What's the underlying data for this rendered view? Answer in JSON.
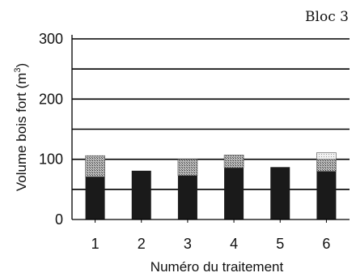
{
  "panel_label": "Bloc 3",
  "chart_data": {
    "type": "bar",
    "stacked": true,
    "title": "",
    "xlabel": "Numéro du traitement",
    "ylabel": "Volume bois fort (m 3 )",
    "ylabel_base": "Volume bois fort (m",
    "ylabel_sup": "3",
    "ylabel_close": ")",
    "ylim": [
      0,
      300
    ],
    "yticks": [
      0,
      100,
      200,
      300
    ],
    "gridlines": [
      50,
      100,
      150,
      200,
      250,
      300
    ],
    "categories": [
      "1",
      "2",
      "3",
      "4",
      "5",
      "6"
    ],
    "series": [
      {
        "values": [
          71,
          81,
          73,
          86,
          87,
          80
        ],
        "color": "#1a1a1a",
        "pattern": "solid"
      },
      {
        "values": [
          35,
          0,
          27,
          21,
          0,
          20
        ],
        "color": "#7a7a7a",
        "pattern": "crosshatch"
      },
      {
        "values": [
          0,
          0,
          0,
          0,
          0,
          11
        ],
        "color": "#d8d8d8",
        "pattern": "light-dots"
      }
    ]
  }
}
